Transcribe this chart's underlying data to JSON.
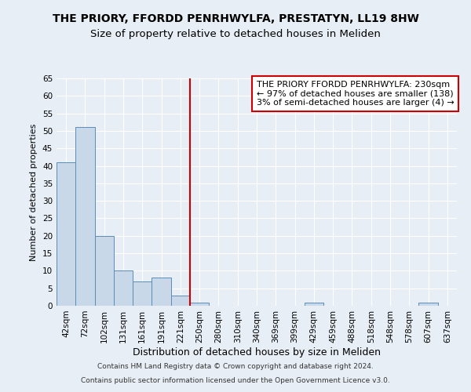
{
  "title1": "THE PRIORY, FFORDD PENRHWYLFA, PRESTATYN, LL19 8HW",
  "title2": "Size of property relative to detached houses in Meliden",
  "xlabel": "Distribution of detached houses by size in Meliden",
  "ylabel": "Number of detached properties",
  "categories": [
    "42sqm",
    "72sqm",
    "102sqm",
    "131sqm",
    "161sqm",
    "191sqm",
    "221sqm",
    "250sqm",
    "280sqm",
    "310sqm",
    "340sqm",
    "369sqm",
    "399sqm",
    "429sqm",
    "459sqm",
    "488sqm",
    "518sqm",
    "548sqm",
    "578sqm",
    "607sqm",
    "637sqm"
  ],
  "values": [
    41,
    51,
    20,
    10,
    7,
    8,
    3,
    1,
    0,
    0,
    0,
    0,
    0,
    1,
    0,
    0,
    0,
    0,
    0,
    1,
    0
  ],
  "bar_color": "#c8d8e8",
  "bar_edge_color": "#5b8db8",
  "annotation_line1": "THE PRIORY FFORDD PENRHWYLFA: 230sqm",
  "annotation_line2": "← 97% of detached houses are smaller (138)",
  "annotation_line3": "3% of semi-detached houses are larger (4) →",
  "annotation_box_color": "#ffffff",
  "annotation_box_edge_color": "#cc0000",
  "vline_color": "#cc0000",
  "vline_x_index": 6.5,
  "ylim": [
    0,
    65
  ],
  "yticks": [
    0,
    5,
    10,
    15,
    20,
    25,
    30,
    35,
    40,
    45,
    50,
    55,
    60,
    65
  ],
  "footer_line1": "Contains HM Land Registry data © Crown copyright and database right 2024.",
  "footer_line2": "Contains public sector information licensed under the Open Government Licence v3.0.",
  "background_color": "#e8eef5",
  "plot_bg_color": "#e8eef5",
  "grid_color": "#ffffff",
  "title1_fontsize": 10,
  "title2_fontsize": 9.5,
  "tick_fontsize": 7.5,
  "xlabel_fontsize": 9,
  "ylabel_fontsize": 8,
  "annotation_fontsize": 8,
  "footer_fontsize": 6.5
}
